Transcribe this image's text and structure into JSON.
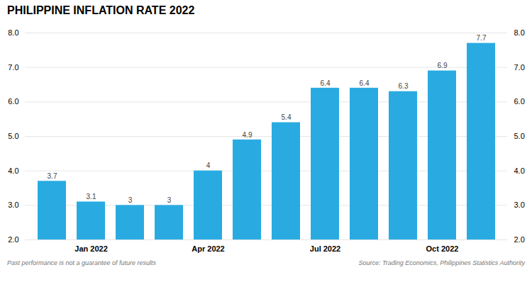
{
  "chart_data": {
    "type": "bar",
    "title": "PHILIPPINE INFLATION RATE 2022",
    "categories": [
      null,
      "Jan 2022",
      null,
      null,
      "Apr 2022",
      null,
      null,
      "Jul 2022",
      null,
      null,
      "Oct 2022",
      null
    ],
    "values": [
      3.7,
      3.1,
      3.0,
      3.0,
      4.0,
      4.9,
      5.4,
      6.4,
      6.4,
      6.3,
      6.9,
      7.7
    ],
    "value_labels": [
      "3.7",
      "3.1",
      "3",
      "3",
      "4",
      "4.9",
      "5.4",
      "6.4",
      "6.4",
      "6.3",
      "6.9",
      "7.7"
    ],
    "data_labels": true,
    "color": "#29ABE2",
    "ylim": [
      2,
      8
    ],
    "yticks": [
      2,
      3,
      4,
      5,
      6,
      7,
      8
    ],
    "grid": true,
    "annotations": [
      "Past performance is not a guarantee of future results",
      "Source: Trading Economics, Philippines Statistics Authority"
    ]
  }
}
